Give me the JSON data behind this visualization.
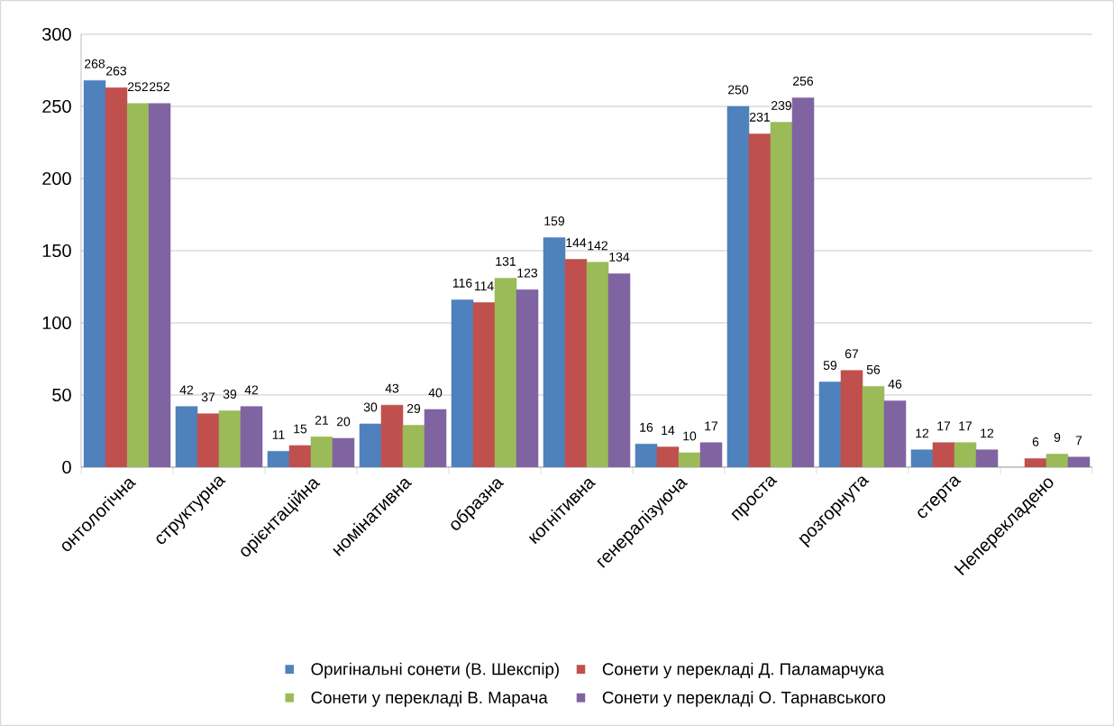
{
  "chart_data": {
    "type": "bar",
    "categories": [
      "онтологічна",
      "структурна",
      "орієнтаційна",
      "номінативна",
      "образна",
      "когнітивна",
      "генералізуюча",
      "проста",
      "розгорнута",
      "стерта",
      "Неперекладено"
    ],
    "series": [
      {
        "name": "Оригінальні сонети (В. Шекспір)",
        "color": "#4f81bd",
        "values": [
          268,
          42,
          11,
          30,
          116,
          159,
          16,
          250,
          59,
          12,
          null
        ]
      },
      {
        "name": "Сонети у перекладі Д. Паламарчука",
        "color": "#c0504d",
        "values": [
          263,
          37,
          15,
          43,
          114,
          144,
          14,
          231,
          67,
          17,
          6
        ]
      },
      {
        "name": "Сонети у перекладі В. Марача",
        "color": "#9bbb59",
        "values": [
          252,
          39,
          21,
          29,
          131,
          142,
          10,
          239,
          56,
          17,
          9
        ]
      },
      {
        "name": "Сонети у перекладі О. Тарнавського",
        "color": "#8064a2",
        "values": [
          252,
          42,
          20,
          40,
          123,
          134,
          17,
          256,
          46,
          12,
          7
        ]
      }
    ],
    "ylim": [
      0,
      300
    ],
    "yticks": [
      0,
      50,
      100,
      150,
      200,
      250,
      300
    ],
    "grid": "y",
    "legend": "bottom",
    "data_labels": true
  }
}
